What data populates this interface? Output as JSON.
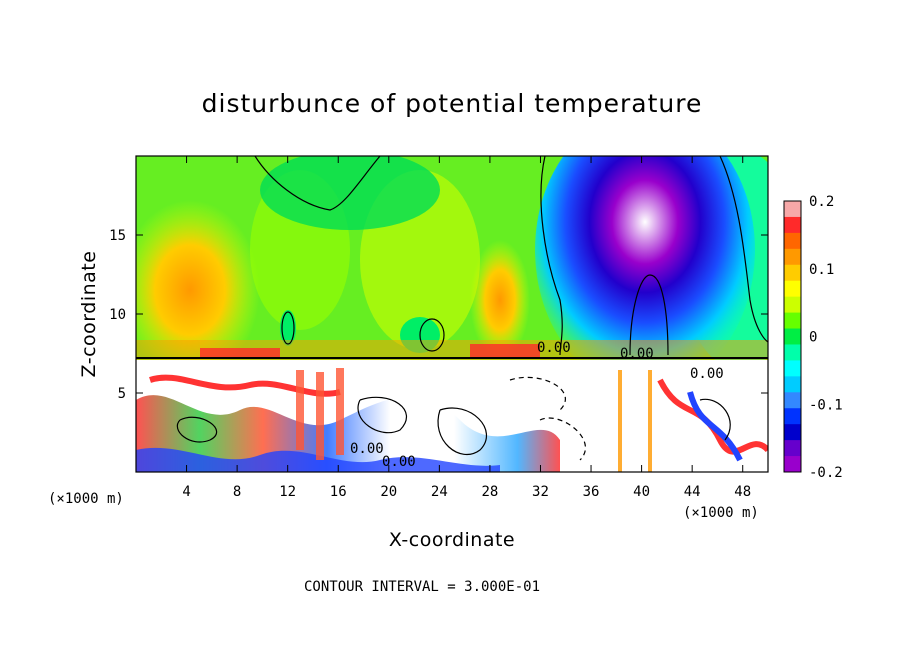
{
  "chart_data": {
    "type": "heatmap",
    "title": "disturbunce of potential temperature",
    "xlabel": "X-coordinate",
    "ylabel": "Z-coordinate",
    "x_unit_label": "(×1000 m)",
    "z_unit_label": "(×1000 m)",
    "x_range": [
      0,
      50
    ],
    "z_range": [
      0,
      20
    ],
    "x_ticks": [
      4,
      8,
      12,
      16,
      20,
      24,
      28,
      32,
      36,
      40,
      44,
      48
    ],
    "z_ticks": [
      5,
      10,
      15
    ],
    "colorbar": {
      "range": [
        -0.2,
        0.2
      ],
      "tick_labels": [
        "0.2",
        "0.1",
        "0",
        "-0.1",
        "-0.2"
      ],
      "tick_values": [
        0.2,
        0.1,
        0,
        -0.1,
        -0.2
      ],
      "colors": [
        "#f7a8a8",
        "#ff2a2a",
        "#ff6600",
        "#ff9900",
        "#ffcc00",
        "#ffff00",
        "#ccff00",
        "#66ff00",
        "#00ee44",
        "#00ffaa",
        "#00ffff",
        "#00ccff",
        "#3388ff",
        "#0033ff",
        "#0000cc",
        "#6600cc",
        "#9900cc"
      ]
    },
    "contour_labels": [
      "0.00",
      "0.00",
      "0.00",
      "0.00",
      "0.00"
    ],
    "contour_interval_text": "CONTOUR INTERVAL = 3.000E-01"
  }
}
